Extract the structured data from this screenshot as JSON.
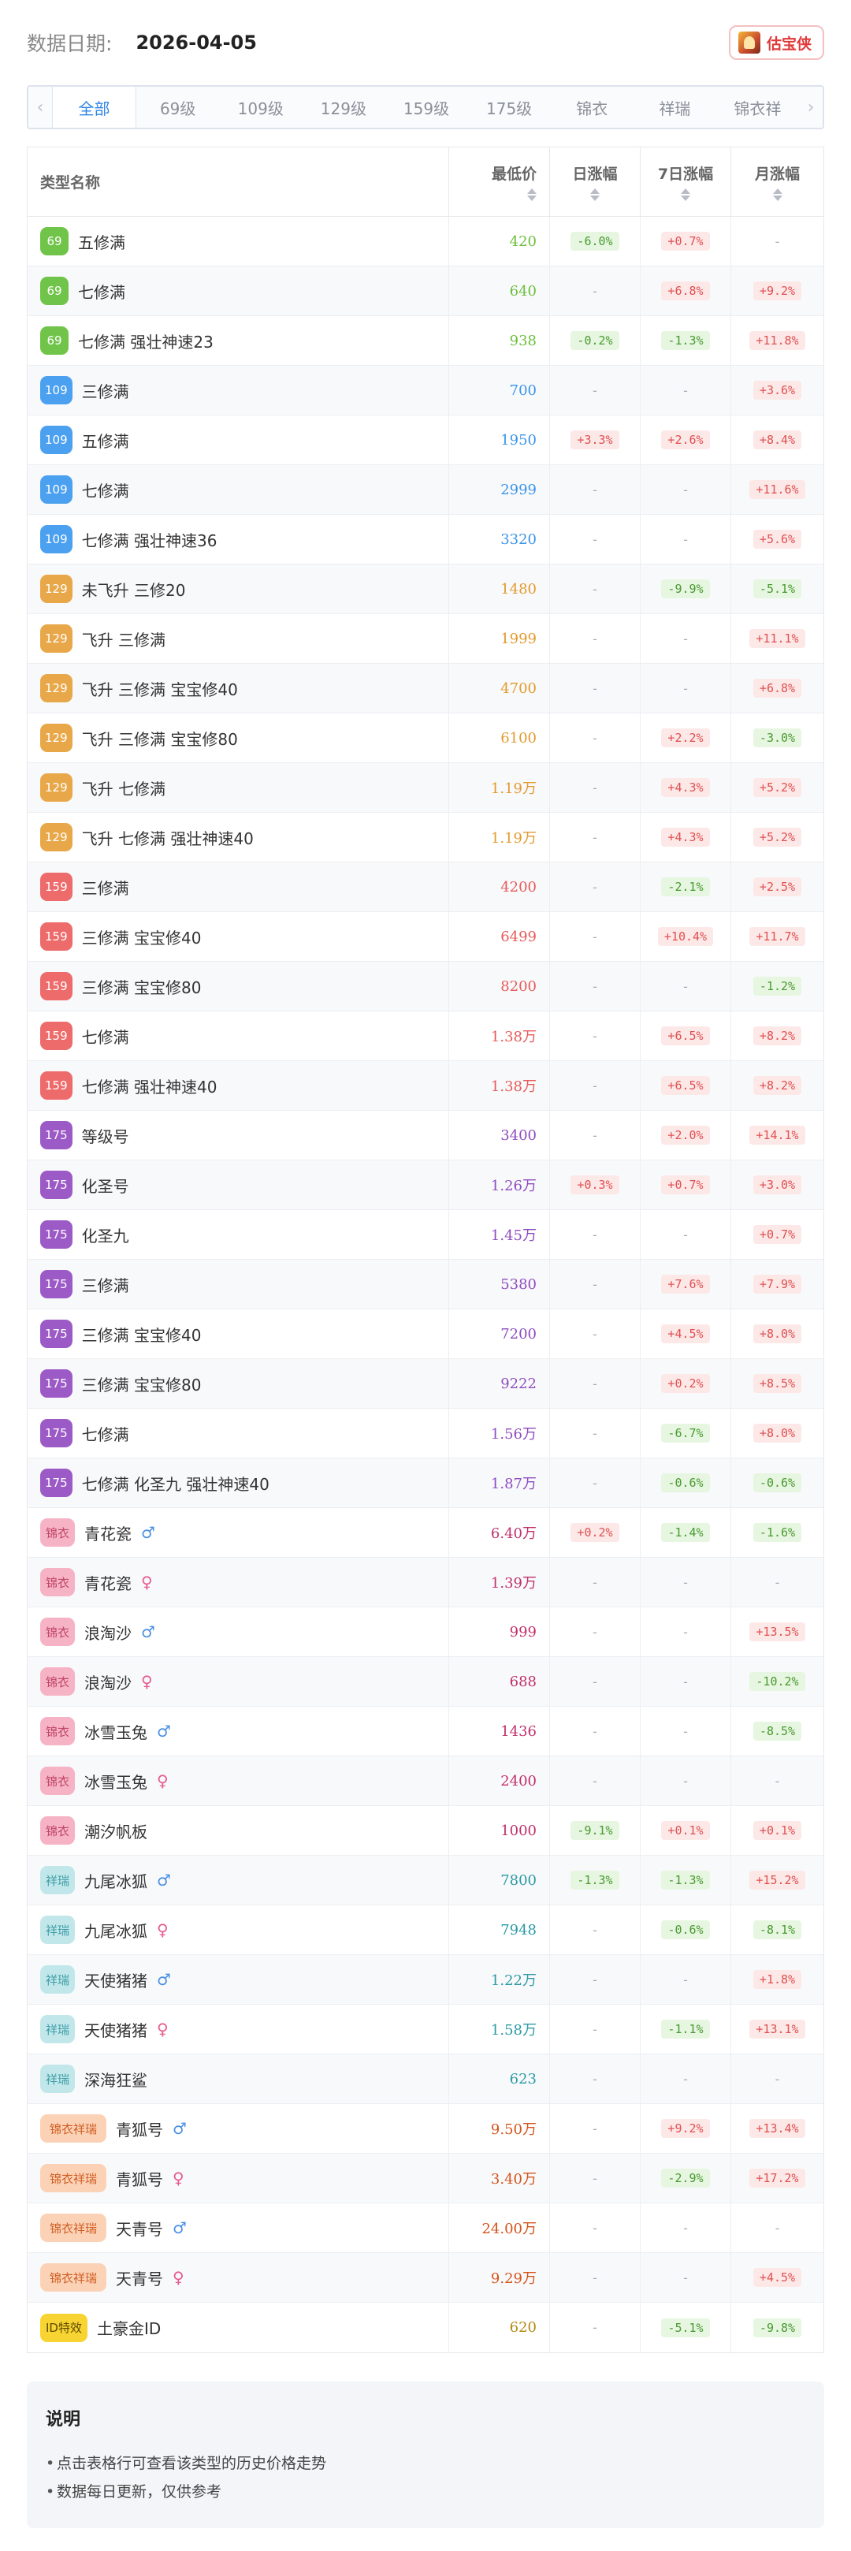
{
  "header": {
    "date_label": "数据日期:",
    "date_value": "2026-04-05",
    "brand_name": "估宝侠"
  },
  "tabs": {
    "prev_icon": "chevron-left-icon",
    "next_icon": "chevron-right-icon",
    "items": [
      "全部",
      "69级",
      "109级",
      "129级",
      "159级",
      "175级",
      "锦衣",
      "祥瑞",
      "锦衣祥"
    ],
    "active_index": 0
  },
  "table": {
    "headers": {
      "name": "类型名称",
      "price": "最低价",
      "day": "日涨幅",
      "week": "7日涨幅",
      "month": "月涨幅"
    },
    "dash": "-",
    "rows": [
      {
        "tag": "69",
        "cls": "lv69",
        "name": "五修满",
        "gender": "",
        "price": "420",
        "price_color": "#6cbf3c",
        "day": "-6.0%",
        "day_dir": "down",
        "week": "+0.7%",
        "week_dir": "up",
        "month": "",
        "month_dir": ""
      },
      {
        "tag": "69",
        "cls": "lv69",
        "name": "七修满",
        "gender": "",
        "price": "640",
        "price_color": "#6cbf3c",
        "day": "",
        "day_dir": "",
        "week": "+6.8%",
        "week_dir": "up",
        "month": "+9.2%",
        "month_dir": "up"
      },
      {
        "tag": "69",
        "cls": "lv69",
        "name": "七修满 强壮神速23",
        "gender": "",
        "price": "938",
        "price_color": "#6cbf3c",
        "day": "-0.2%",
        "day_dir": "down",
        "week": "-1.3%",
        "week_dir": "down",
        "month": "+11.8%",
        "month_dir": "up"
      },
      {
        "tag": "109",
        "cls": "lv109",
        "name": "三修满",
        "gender": "",
        "price": "700",
        "price_color": "#3b95e8",
        "day": "",
        "day_dir": "",
        "week": "",
        "week_dir": "",
        "month": "+3.6%",
        "month_dir": "up"
      },
      {
        "tag": "109",
        "cls": "lv109",
        "name": "五修满",
        "gender": "",
        "price": "1950",
        "price_color": "#3b95e8",
        "day": "+3.3%",
        "day_dir": "up",
        "week": "+2.6%",
        "week_dir": "up",
        "month": "+8.4%",
        "month_dir": "up"
      },
      {
        "tag": "109",
        "cls": "lv109",
        "name": "七修满",
        "gender": "",
        "price": "2999",
        "price_color": "#3b95e8",
        "day": "",
        "day_dir": "",
        "week": "",
        "week_dir": "",
        "month": "+11.6%",
        "month_dir": "up"
      },
      {
        "tag": "109",
        "cls": "lv109",
        "name": "七修满 强壮神速36",
        "gender": "",
        "price": "3320",
        "price_color": "#3b95e8",
        "day": "",
        "day_dir": "",
        "week": "",
        "week_dir": "",
        "month": "+5.6%",
        "month_dir": "up"
      },
      {
        "tag": "129",
        "cls": "lv129",
        "name": "未飞升 三修20",
        "gender": "",
        "price": "1480",
        "price_color": "#e39a2e",
        "day": "",
        "day_dir": "",
        "week": "-9.9%",
        "week_dir": "down",
        "month": "-5.1%",
        "month_dir": "down"
      },
      {
        "tag": "129",
        "cls": "lv129",
        "name": "飞升 三修满",
        "gender": "",
        "price": "1999",
        "price_color": "#e39a2e",
        "day": "",
        "day_dir": "",
        "week": "",
        "week_dir": "",
        "month": "+11.1%",
        "month_dir": "up"
      },
      {
        "tag": "129",
        "cls": "lv129",
        "name": "飞升 三修满 宝宝修40",
        "gender": "",
        "price": "4700",
        "price_color": "#e39a2e",
        "day": "",
        "day_dir": "",
        "week": "",
        "week_dir": "",
        "month": "+6.8%",
        "month_dir": "up"
      },
      {
        "tag": "129",
        "cls": "lv129",
        "name": "飞升 三修满 宝宝修80",
        "gender": "",
        "price": "6100",
        "price_color": "#e39a2e",
        "day": "",
        "day_dir": "",
        "week": "+2.2%",
        "week_dir": "up",
        "month": "-3.0%",
        "month_dir": "down"
      },
      {
        "tag": "129",
        "cls": "lv129",
        "name": "飞升 七修满",
        "gender": "",
        "price": "1.19万",
        "price_color": "#e39a2e",
        "day": "",
        "day_dir": "",
        "week": "+4.3%",
        "week_dir": "up",
        "month": "+5.2%",
        "month_dir": "up"
      },
      {
        "tag": "129",
        "cls": "lv129",
        "name": "飞升 七修满 强壮神速40",
        "gender": "",
        "price": "1.19万",
        "price_color": "#e39a2e",
        "day": "",
        "day_dir": "",
        "week": "+4.3%",
        "week_dir": "up",
        "month": "+5.2%",
        "month_dir": "up"
      },
      {
        "tag": "159",
        "cls": "lv159",
        "name": "三修满",
        "gender": "",
        "price": "4200",
        "price_color": "#e85a5a",
        "day": "",
        "day_dir": "",
        "week": "-2.1%",
        "week_dir": "down",
        "month": "+2.5%",
        "month_dir": "up"
      },
      {
        "tag": "159",
        "cls": "lv159",
        "name": "三修满 宝宝修40",
        "gender": "",
        "price": "6499",
        "price_color": "#e85a5a",
        "day": "",
        "day_dir": "",
        "week": "+10.4%",
        "week_dir": "up",
        "month": "+11.7%",
        "month_dir": "up"
      },
      {
        "tag": "159",
        "cls": "lv159",
        "name": "三修满 宝宝修80",
        "gender": "",
        "price": "8200",
        "price_color": "#e85a5a",
        "day": "",
        "day_dir": "",
        "week": "",
        "week_dir": "",
        "month": "-1.2%",
        "month_dir": "down"
      },
      {
        "tag": "159",
        "cls": "lv159",
        "name": "七修满",
        "gender": "",
        "price": "1.38万",
        "price_color": "#e85a5a",
        "day": "",
        "day_dir": "",
        "week": "+6.5%",
        "week_dir": "up",
        "month": "+8.2%",
        "month_dir": "up"
      },
      {
        "tag": "159",
        "cls": "lv159",
        "name": "七修满 强壮神速40",
        "gender": "",
        "price": "1.38万",
        "price_color": "#e85a5a",
        "day": "",
        "day_dir": "",
        "week": "+6.5%",
        "week_dir": "up",
        "month": "+8.2%",
        "month_dir": "up"
      },
      {
        "tag": "175",
        "cls": "lv175",
        "name": "等级号",
        "gender": "",
        "price": "3400",
        "price_color": "#8e4cbf",
        "day": "",
        "day_dir": "",
        "week": "+2.0%",
        "week_dir": "up",
        "month": "+14.1%",
        "month_dir": "up"
      },
      {
        "tag": "175",
        "cls": "lv175",
        "name": "化圣号",
        "gender": "",
        "price": "1.26万",
        "price_color": "#8e4cbf",
        "day": "+0.3%",
        "day_dir": "up",
        "week": "+0.7%",
        "week_dir": "up",
        "month": "+3.0%",
        "month_dir": "up"
      },
      {
        "tag": "175",
        "cls": "lv175",
        "name": "化圣九",
        "gender": "",
        "price": "1.45万",
        "price_color": "#8e4cbf",
        "day": "",
        "day_dir": "",
        "week": "",
        "week_dir": "",
        "month": "+0.7%",
        "month_dir": "up"
      },
      {
        "tag": "175",
        "cls": "lv175",
        "name": "三修满",
        "gender": "",
        "price": "5380",
        "price_color": "#8e4cbf",
        "day": "",
        "day_dir": "",
        "week": "+7.6%",
        "week_dir": "up",
        "month": "+7.9%",
        "month_dir": "up"
      },
      {
        "tag": "175",
        "cls": "lv175",
        "name": "三修满 宝宝修40",
        "gender": "",
        "price": "7200",
        "price_color": "#8e4cbf",
        "day": "",
        "day_dir": "",
        "week": "+4.5%",
        "week_dir": "up",
        "month": "+8.0%",
        "month_dir": "up"
      },
      {
        "tag": "175",
        "cls": "lv175",
        "name": "三修满 宝宝修80",
        "gender": "",
        "price": "9222",
        "price_color": "#8e4cbf",
        "day": "",
        "day_dir": "",
        "week": "+0.2%",
        "week_dir": "up",
        "month": "+8.5%",
        "month_dir": "up"
      },
      {
        "tag": "175",
        "cls": "lv175",
        "name": "七修满",
        "gender": "",
        "price": "1.56万",
        "price_color": "#8e4cbf",
        "day": "",
        "day_dir": "",
        "week": "-6.7%",
        "week_dir": "down",
        "month": "+8.0%",
        "month_dir": "up"
      },
      {
        "tag": "175",
        "cls": "lv175",
        "name": "七修满 化圣九 强壮神速40",
        "gender": "",
        "price": "1.87万",
        "price_color": "#8e4cbf",
        "day": "",
        "day_dir": "",
        "week": "-0.6%",
        "week_dir": "down",
        "month": "-0.6%",
        "month_dir": "down"
      },
      {
        "tag": "锦衣",
        "cls": "lvjy",
        "name": "青花瓷",
        "gender": "♂",
        "price": "6.40万",
        "price_color": "#c2306a",
        "day": "+0.2%",
        "day_dir": "up",
        "week": "-1.4%",
        "week_dir": "down",
        "month": "-1.6%",
        "month_dir": "down"
      },
      {
        "tag": "锦衣",
        "cls": "lvjy",
        "name": "青花瓷",
        "gender": "♀",
        "price": "1.39万",
        "price_color": "#c2306a",
        "day": "",
        "day_dir": "",
        "week": "",
        "week_dir": "",
        "month": "",
        "month_dir": ""
      },
      {
        "tag": "锦衣",
        "cls": "lvjy",
        "name": "浪淘沙",
        "gender": "♂",
        "price": "999",
        "price_color": "#c2306a",
        "day": "",
        "day_dir": "",
        "week": "",
        "week_dir": "",
        "month": "+13.5%",
        "month_dir": "up"
      },
      {
        "tag": "锦衣",
        "cls": "lvjy",
        "name": "浪淘沙",
        "gender": "♀",
        "price": "688",
        "price_color": "#c2306a",
        "day": "",
        "day_dir": "",
        "week": "",
        "week_dir": "",
        "month": "-10.2%",
        "month_dir": "down"
      },
      {
        "tag": "锦衣",
        "cls": "lvjy",
        "name": "冰雪玉兔",
        "gender": "♂",
        "price": "1436",
        "price_color": "#c2306a",
        "day": "",
        "day_dir": "",
        "week": "",
        "week_dir": "",
        "month": "-8.5%",
        "month_dir": "down"
      },
      {
        "tag": "锦衣",
        "cls": "lvjy",
        "name": "冰雪玉兔",
        "gender": "♀",
        "price": "2400",
        "price_color": "#c2306a",
        "day": "",
        "day_dir": "",
        "week": "",
        "week_dir": "",
        "month": "",
        "month_dir": ""
      },
      {
        "tag": "锦衣",
        "cls": "lvjy",
        "name": "潮汐帆板",
        "gender": "",
        "price": "1000",
        "price_color": "#c2306a",
        "day": "-9.1%",
        "day_dir": "down",
        "week": "+0.1%",
        "week_dir": "up",
        "month": "+0.1%",
        "month_dir": "up"
      },
      {
        "tag": "祥瑞",
        "cls": "lvxr",
        "name": "九尾冰狐",
        "gender": "♂",
        "price": "7800",
        "price_color": "#2b9aa5",
        "day": "-1.3%",
        "day_dir": "down",
        "week": "-1.3%",
        "week_dir": "down",
        "month": "+15.2%",
        "month_dir": "up"
      },
      {
        "tag": "祥瑞",
        "cls": "lvxr",
        "name": "九尾冰狐",
        "gender": "♀",
        "price": "7948",
        "price_color": "#2b9aa5",
        "day": "",
        "day_dir": "",
        "week": "-0.6%",
        "week_dir": "down",
        "month": "-8.1%",
        "month_dir": "down"
      },
      {
        "tag": "祥瑞",
        "cls": "lvxr",
        "name": "天使猪猪",
        "gender": "♂",
        "price": "1.22万",
        "price_color": "#2b9aa5",
        "day": "",
        "day_dir": "",
        "week": "",
        "week_dir": "",
        "month": "+1.8%",
        "month_dir": "up"
      },
      {
        "tag": "祥瑞",
        "cls": "lvxr",
        "name": "天使猪猪",
        "gender": "♀",
        "price": "1.58万",
        "price_color": "#2b9aa5",
        "day": "",
        "day_dir": "",
        "week": "-1.1%",
        "week_dir": "down",
        "month": "+13.1%",
        "month_dir": "up"
      },
      {
        "tag": "祥瑞",
        "cls": "lvxr",
        "name": "深海狂鲨",
        "gender": "",
        "price": "623",
        "price_color": "#2b9aa5",
        "day": "",
        "day_dir": "",
        "week": "",
        "week_dir": "",
        "month": "",
        "month_dir": ""
      },
      {
        "tag": "锦衣祥瑞",
        "cls": "lvjx",
        "name": "青狐号",
        "gender": "♂",
        "price": "9.50万",
        "price_color": "#d4541a",
        "day": "",
        "day_dir": "",
        "week": "+9.2%",
        "week_dir": "up",
        "month": "+13.4%",
        "month_dir": "up"
      },
      {
        "tag": "锦衣祥瑞",
        "cls": "lvjx",
        "name": "青狐号",
        "gender": "♀",
        "price": "3.40万",
        "price_color": "#d4541a",
        "day": "",
        "day_dir": "",
        "week": "-2.9%",
        "week_dir": "down",
        "month": "+17.2%",
        "month_dir": "up"
      },
      {
        "tag": "锦衣祥瑞",
        "cls": "lvjx",
        "name": "天青号",
        "gender": "♂",
        "price": "24.00万",
        "price_color": "#d4541a",
        "day": "",
        "day_dir": "",
        "week": "",
        "week_dir": "",
        "month": "",
        "month_dir": ""
      },
      {
        "tag": "锦衣祥瑞",
        "cls": "lvjx",
        "name": "天青号",
        "gender": "♀",
        "price": "9.29万",
        "price_color": "#d4541a",
        "day": "",
        "day_dir": "",
        "week": "",
        "week_dir": "",
        "month": "+4.5%",
        "month_dir": "up"
      },
      {
        "tag": "ID特效",
        "cls": "lvid",
        "name": "土豪金ID",
        "gender": "",
        "price": "620",
        "price_color": "#b58a12",
        "day": "",
        "day_dir": "",
        "week": "-5.1%",
        "week_dir": "down",
        "month": "-9.8%",
        "month_dir": "down"
      }
    ]
  },
  "notes": {
    "title": "说明",
    "items": [
      "点击表格行可查看该类型的历史价格走势",
      "数据每日更新，仅供参考"
    ]
  },
  "colors": {
    "accent": "#2f86e8",
    "up_text": "#e05050",
    "down_text": "#4a9a30",
    "brand": "#e03a3a"
  }
}
